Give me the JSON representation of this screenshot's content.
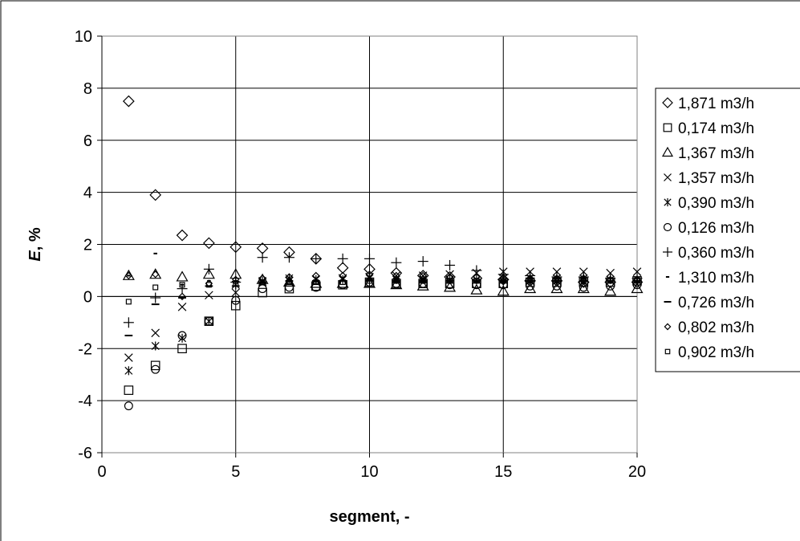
{
  "chart_data": {
    "type": "scatter",
    "title": "",
    "xlabel": "segment, -",
    "ylabel_italic": "E",
    "ylabel_rest": ", %",
    "xlim": [
      0,
      20
    ],
    "ylim": [
      -6,
      10
    ],
    "xticks": [
      "0",
      "5",
      "10",
      "15",
      "20"
    ],
    "yticks": [
      "10",
      "8",
      "6",
      "4",
      "2",
      "0",
      "-2",
      "-4",
      "-6"
    ],
    "grid": true,
    "legend_position": "right",
    "series": [
      {
        "name": "1,871 m3/h",
        "marker": "diamond",
        "x": [
          1,
          2,
          3,
          4,
          5,
          6,
          7,
          8,
          9,
          10,
          11,
          12,
          13,
          14,
          15,
          16,
          17,
          18,
          19,
          20
        ],
        "y": [
          7.5,
          3.9,
          2.35,
          2.05,
          1.9,
          1.85,
          1.7,
          1.45,
          1.1,
          1.05,
          0.9,
          0.8,
          0.75,
          0.7,
          0.65,
          0.6,
          0.6,
          0.55,
          0.55,
          0.55
        ]
      },
      {
        "name": "0,174 m3/h",
        "marker": "square",
        "x": [
          1,
          2,
          3,
          4,
          5,
          6,
          7,
          8,
          9,
          10,
          11,
          12,
          13,
          14,
          15,
          16,
          17,
          18,
          19,
          20
        ],
        "y": [
          -3.6,
          -2.65,
          -2.0,
          -0.95,
          -0.35,
          0.15,
          0.3,
          0.4,
          0.45,
          0.55,
          0.5,
          0.5,
          0.5,
          0.5,
          0.5,
          0.55,
          0.55,
          0.55,
          0.55,
          0.6
        ]
      },
      {
        "name": "1,367 m3/h",
        "marker": "triangle",
        "x": [
          1,
          2,
          3,
          4,
          5,
          6,
          7,
          8,
          9,
          10,
          11,
          12,
          13,
          14,
          15,
          16,
          17,
          18,
          19,
          20
        ],
        "y": [
          0.8,
          0.85,
          0.75,
          0.85,
          0.85,
          0.65,
          0.55,
          0.5,
          0.5,
          0.5,
          0.45,
          0.4,
          0.35,
          0.25,
          0.2,
          0.3,
          0.3,
          0.3,
          0.2,
          0.3
        ]
      },
      {
        "name": "1,357 m3/h",
        "marker": "x",
        "x": [
          1,
          2,
          3,
          4,
          5,
          6,
          7,
          8,
          9,
          10,
          11,
          12,
          13,
          14,
          15,
          16,
          17,
          18,
          19,
          20
        ],
        "y": [
          -2.35,
          -1.4,
          -0.4,
          0.05,
          0.15,
          0.55,
          0.6,
          0.65,
          0.7,
          0.75,
          0.8,
          0.8,
          0.85,
          0.9,
          0.95,
          0.95,
          0.95,
          0.95,
          0.9,
          0.95
        ]
      },
      {
        "name": "0,390 m3/h",
        "marker": "asterisk",
        "x": [
          1,
          2,
          3,
          4,
          5,
          6,
          7,
          8,
          9,
          10,
          11,
          12,
          13,
          14,
          15,
          16,
          17,
          18,
          19,
          20
        ],
        "y": [
          -2.85,
          -1.9,
          -1.6,
          -0.95,
          0.45,
          0.6,
          0.7,
          0.65,
          0.65,
          0.7,
          0.65,
          0.65,
          0.65,
          0.65,
          0.7,
          0.7,
          0.7,
          0.7,
          0.65,
          0.65
        ]
      },
      {
        "name": "0,126 m3/h",
        "marker": "circle",
        "x": [
          1,
          2,
          3,
          4,
          5,
          6,
          7,
          8,
          9,
          10,
          11,
          12,
          13,
          14,
          15,
          16,
          17,
          18,
          19,
          20
        ],
        "y": [
          -4.2,
          -2.8,
          -1.5,
          -0.95,
          -0.15,
          0.3,
          0.35,
          0.35,
          0.45,
          0.55,
          0.5,
          0.5,
          0.45,
          0.45,
          0.45,
          0.4,
          0.4,
          0.35,
          0.4,
          0.45
        ]
      },
      {
        "name": "0,360 m3/h",
        "marker": "plus",
        "x": [
          1,
          2,
          3,
          4,
          5,
          6,
          7,
          8,
          9,
          10,
          11,
          12,
          13,
          14,
          15,
          16,
          17,
          18,
          19,
          20
        ],
        "y": [
          -1.0,
          -0.05,
          0.3,
          1.05,
          0.55,
          1.5,
          1.5,
          1.45,
          1.45,
          1.45,
          1.3,
          1.35,
          1.2,
          1.0,
          0.85,
          0.8,
          0.75,
          0.75,
          0.7,
          0.7
        ]
      },
      {
        "name": "1,310 m3/h",
        "marker": "dash",
        "x": [
          1,
          2,
          3,
          4,
          5,
          6,
          7,
          8,
          9,
          10,
          11,
          12,
          13,
          14,
          15,
          16,
          17,
          18,
          19,
          20
        ],
        "y": [
          0.8,
          1.65,
          0.45,
          0.6,
          0.6,
          0.6,
          0.6,
          0.6,
          0.6,
          0.6,
          0.55,
          0.55,
          0.55,
          0.55,
          0.55,
          0.55,
          0.55,
          0.55,
          0.55,
          0.55
        ]
      },
      {
        "name": "0,726 m3/h",
        "marker": "long-dash",
        "x": [
          1,
          2,
          3,
          4,
          5,
          6,
          7,
          8,
          9,
          10,
          11,
          12,
          13,
          14,
          15,
          16,
          17,
          18,
          19,
          20
        ],
        "y": [
          -1.5,
          -0.3,
          -0.05,
          0.4,
          0.4,
          0.55,
          0.6,
          0.6,
          0.6,
          0.65,
          0.6,
          0.6,
          0.6,
          0.6,
          0.6,
          0.6,
          0.6,
          0.6,
          0.6,
          0.6
        ]
      },
      {
        "name": "0,802 m3/h",
        "marker": "small-diamond",
        "x": [
          1,
          2,
          3,
          4,
          5,
          6,
          7,
          8,
          9,
          10,
          11,
          12,
          13,
          14,
          15,
          16,
          17,
          18,
          19,
          20
        ],
        "y": [
          0.8,
          0.85,
          0.0,
          0.5,
          0.65,
          0.7,
          0.75,
          0.8,
          0.8,
          0.85,
          0.8,
          0.8,
          0.75,
          0.75,
          0.7,
          0.7,
          0.7,
          0.7,
          0.65,
          0.65
        ]
      },
      {
        "name": "0,902 m3/h",
        "marker": "small-square",
        "x": [
          1,
          2,
          3,
          4,
          5,
          6,
          7,
          8,
          9,
          10,
          11,
          12,
          13,
          14,
          15,
          16,
          17,
          18,
          19,
          20
        ],
        "y": [
          -0.2,
          0.35,
          0.45,
          0.45,
          0.5,
          0.55,
          0.55,
          0.55,
          0.55,
          0.6,
          0.6,
          0.6,
          0.6,
          0.6,
          0.6,
          0.6,
          0.6,
          0.6,
          0.6,
          0.6
        ]
      }
    ]
  }
}
